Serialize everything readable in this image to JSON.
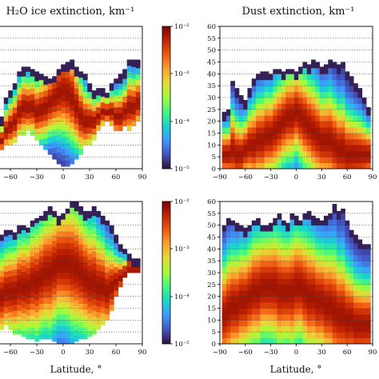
{
  "panels": [
    {
      "id": "ice-top",
      "title": "H₂O ice extinction, km⁻¹",
      "xticks": [
        -60,
        -30,
        0,
        30,
        60,
        90
      ],
      "xtick_labels": [
        "−60",
        "−30",
        "0",
        "30",
        "60",
        "90"
      ],
      "cbar_labels": [
        "10⁻²",
        "10⁻³",
        "10⁻⁴",
        "10⁻⁵"
      ]
    },
    {
      "id": "dust-top",
      "title": "Dust extinction, km⁻¹",
      "xticks": [
        -90,
        -60,
        -30,
        0,
        30,
        60,
        90
      ],
      "xtick_labels": [
        "−90",
        "−60",
        "−30",
        "0",
        "30",
        "60",
        "90"
      ],
      "yticks": [
        0,
        5,
        10,
        15,
        20,
        25,
        30,
        35,
        40,
        45,
        50,
        55,
        60
      ],
      "ytick_labels": [
        "0",
        "5",
        "10",
        "15",
        "20",
        "25",
        "30",
        "35",
        "40",
        "45",
        "50",
        "55",
        "60"
      ]
    },
    {
      "id": "ice-bottom",
      "xticks": [
        -60,
        -30,
        0,
        30,
        60,
        90
      ],
      "xtick_labels": [
        "−60",
        "−30",
        "0",
        "30",
        "60",
        "90"
      ],
      "cbar_labels": [
        "10⁻²",
        "10⁻³",
        "10⁻⁴",
        "10⁻⁵"
      ],
      "xlabel": "Latitude, °"
    },
    {
      "id": "dust-bottom",
      "xticks": [
        -90,
        -60,
        -30,
        0,
        30,
        60,
        90
      ],
      "xtick_labels": [
        "−90",
        "−60",
        "−30",
        "0",
        "30",
        "60",
        "90"
      ],
      "yticks": [
        0,
        5,
        10,
        15,
        20,
        25,
        30,
        35,
        40,
        45,
        50,
        55,
        60
      ],
      "ytick_labels": [
        "0",
        "5",
        "10",
        "15",
        "20",
        "25",
        "30",
        "35",
        "40",
        "45",
        "50",
        "55",
        "60"
      ],
      "xlabel": "Latitude, °"
    }
  ],
  "chart_data": [
    {
      "type": "heatmap",
      "title": "H₂O ice extinction, km⁻¹",
      "xlabel": "",
      "colorscale": "turbo",
      "color_scale_type": "log",
      "color_range": [
        1e-05,
        0.01
      ],
      "no_data_color": "#ffffff",
      "grid": "dotted horizontal",
      "xlim": [
        -90,
        90
      ],
      "ylim": [
        0,
        60
      ],
      "bin_width_deg": 5,
      "columns": [
        {
          "lat": -85,
          "bottom": 4,
          "top": 24,
          "core": 10
        },
        {
          "lat": -80,
          "bottom": 4,
          "top": 26,
          "core": 10
        },
        {
          "lat": -75,
          "bottom": 6,
          "top": 25,
          "core": 12
        },
        {
          "lat": -70,
          "bottom": 8,
          "top": 22,
          "core": 12
        },
        {
          "lat": -65,
          "bottom": 10,
          "top": 30,
          "core": 16
        },
        {
          "lat": -60,
          "bottom": 10,
          "top": 33,
          "core": 18
        },
        {
          "lat": -55,
          "bottom": 11,
          "top": 36,
          "core": 20
        },
        {
          "lat": -50,
          "bottom": 14,
          "top": 41,
          "core": 24
        },
        {
          "lat": -45,
          "bottom": 14,
          "top": 43,
          "core": 26
        },
        {
          "lat": -40,
          "bottom": 16,
          "top": 43,
          "core": 26
        },
        {
          "lat": -35,
          "bottom": 14,
          "top": 42,
          "core": 26
        },
        {
          "lat": -30,
          "bottom": 12,
          "top": 41,
          "core": 24
        },
        {
          "lat": -25,
          "bottom": 10,
          "top": 40,
          "core": 25
        },
        {
          "lat": -20,
          "bottom": 8,
          "top": 39,
          "core": 26
        },
        {
          "lat": -15,
          "bottom": 6,
          "top": 38,
          "core": 28
        },
        {
          "lat": -10,
          "bottom": 4,
          "top": 39,
          "core": 30
        },
        {
          "lat": -5,
          "bottom": 2,
          "top": 42,
          "core": 32
        },
        {
          "lat": 0,
          "bottom": 1,
          "top": 44,
          "core": 33
        },
        {
          "lat": 5,
          "bottom": 1,
          "top": 45,
          "core": 32
        },
        {
          "lat": 10,
          "bottom": 2,
          "top": 46,
          "core": 30
        },
        {
          "lat": 15,
          "bottom": 4,
          "top": 43,
          "core": 26
        },
        {
          "lat": 20,
          "bottom": 6,
          "top": 41,
          "core": 22
        },
        {
          "lat": 25,
          "bottom": 10,
          "top": 40,
          "core": 20
        },
        {
          "lat": 30,
          "bottom": 10,
          "top": 36,
          "core": 20
        },
        {
          "lat": 35,
          "bottom": 12,
          "top": 33,
          "core": 20
        },
        {
          "lat": 40,
          "bottom": 16,
          "top": 34,
          "core": 22
        },
        {
          "lat": 45,
          "bottom": 18,
          "top": 34,
          "core": 24
        },
        {
          "lat": 50,
          "bottom": 20,
          "top": 32,
          "core": 24
        },
        {
          "lat": 55,
          "bottom": 18,
          "top": 36,
          "core": 24
        },
        {
          "lat": 60,
          "bottom": 16,
          "top": 38,
          "core": 22
        },
        {
          "lat": 65,
          "bottom": 16,
          "top": 40,
          "core": 22
        },
        {
          "lat": 70,
          "bottom": 18,
          "top": 42,
          "core": 24
        },
        {
          "lat": 75,
          "bottom": 16,
          "top": 46,
          "core": 26
        },
        {
          "lat": 80,
          "bottom": 18,
          "top": 46,
          "core": 26
        },
        {
          "lat": 85,
          "bottom": 20,
          "top": 46,
          "core": 28
        }
      ]
    },
    {
      "type": "heatmap",
      "title": "Dust extinction, km⁻¹",
      "xlabel": "",
      "colorscale": "turbo",
      "color_scale_type": "log",
      "no_data_color": "#ffffff",
      "grid": "dotted horizontal",
      "xlim": [
        -90,
        90
      ],
      "ylim": [
        0,
        60
      ],
      "bin_width_deg": 5,
      "columns": [
        {
          "lat": -85,
          "bottom": 0,
          "top": 24,
          "core": 6
        },
        {
          "lat": -80,
          "bottom": 0,
          "top": 25,
          "core": 6
        },
        {
          "lat": -75,
          "bottom": 0,
          "top": 37,
          "core": 8
        },
        {
          "lat": -70,
          "bottom": 0,
          "top": 34,
          "core": 6
        },
        {
          "lat": -65,
          "bottom": 0,
          "top": 31,
          "core": 6
        },
        {
          "lat": -60,
          "bottom": 0,
          "top": 29,
          "core": 8
        },
        {
          "lat": -55,
          "bottom": 0,
          "top": 34,
          "core": 10
        },
        {
          "lat": -50,
          "bottom": 0,
          "top": 38,
          "core": 10
        },
        {
          "lat": -45,
          "bottom": 0,
          "top": 40,
          "core": 12
        },
        {
          "lat": -40,
          "bottom": 0,
          "top": 41,
          "core": 12
        },
        {
          "lat": -35,
          "bottom": 0,
          "top": 41,
          "core": 14
        },
        {
          "lat": -30,
          "bottom": 0,
          "top": 40,
          "core": 14
        },
        {
          "lat": -25,
          "bottom": 0,
          "top": 42,
          "core": 16
        },
        {
          "lat": -20,
          "bottom": 0,
          "top": 42,
          "core": 18
        },
        {
          "lat": -15,
          "bottom": 0,
          "top": 41,
          "core": 20
        },
        {
          "lat": -10,
          "bottom": 0,
          "top": 42,
          "core": 22
        },
        {
          "lat": -5,
          "bottom": 0,
          "top": 42,
          "core": 22
        },
        {
          "lat": 0,
          "bottom": 0,
          "top": 41,
          "core": 24
        },
        {
          "lat": 5,
          "bottom": 0,
          "top": 43,
          "core": 22
        },
        {
          "lat": 10,
          "bottom": 0,
          "top": 45,
          "core": 20
        },
        {
          "lat": 15,
          "bottom": 0,
          "top": 44,
          "core": 18
        },
        {
          "lat": 20,
          "bottom": 0,
          "top": 46,
          "core": 16
        },
        {
          "lat": 25,
          "bottom": 0,
          "top": 45,
          "core": 14
        },
        {
          "lat": 30,
          "bottom": 0,
          "top": 43,
          "core": 12
        },
        {
          "lat": 35,
          "bottom": 0,
          "top": 44,
          "core": 12
        },
        {
          "lat": 40,
          "bottom": 0,
          "top": 46,
          "core": 12
        },
        {
          "lat": 45,
          "bottom": 0,
          "top": 45,
          "core": 10
        },
        {
          "lat": 50,
          "bottom": 0,
          "top": 44,
          "core": 8
        },
        {
          "lat": 55,
          "bottom": 0,
          "top": 45,
          "core": 8
        },
        {
          "lat": 60,
          "bottom": 0,
          "top": 41,
          "core": 6
        },
        {
          "lat": 65,
          "bottom": 0,
          "top": 39,
          "core": 6
        },
        {
          "lat": 70,
          "bottom": 0,
          "top": 36,
          "core": 6
        },
        {
          "lat": 75,
          "bottom": 0,
          "top": 34,
          "core": 6
        },
        {
          "lat": 80,
          "bottom": 0,
          "top": 30,
          "core": 6
        },
        {
          "lat": 85,
          "bottom": 0,
          "top": 26,
          "core": 6
        }
      ]
    },
    {
      "type": "heatmap",
      "title": "",
      "xlabel": "Latitude, °",
      "colorscale": "turbo",
      "color_scale_type": "log",
      "color_range": [
        1e-05,
        0.01
      ],
      "no_data_color": "#ffffff",
      "grid": "dotted horizontal",
      "xlim": [
        -90,
        90
      ],
      "ylim": [
        0,
        60
      ],
      "bin_width_deg": 5,
      "columns": [
        {
          "lat": -85,
          "bottom": 16,
          "top": 50,
          "core": 28
        },
        {
          "lat": -80,
          "bottom": 12,
          "top": 48,
          "core": 26
        },
        {
          "lat": -75,
          "bottom": 8,
          "top": 46,
          "core": 22
        },
        {
          "lat": -70,
          "bottom": 6,
          "top": 46,
          "core": 20
        },
        {
          "lat": -65,
          "bottom": 8,
          "top": 48,
          "core": 22
        },
        {
          "lat": -60,
          "bottom": 6,
          "top": 48,
          "core": 22
        },
        {
          "lat": -55,
          "bottom": 4,
          "top": 47,
          "core": 22
        },
        {
          "lat": -50,
          "bottom": 4,
          "top": 50,
          "core": 24
        },
        {
          "lat": -45,
          "bottom": 3,
          "top": 50,
          "core": 24
        },
        {
          "lat": -40,
          "bottom": 2,
          "top": 49,
          "core": 24
        },
        {
          "lat": -35,
          "bottom": 2,
          "top": 52,
          "core": 26
        },
        {
          "lat": -30,
          "bottom": 1,
          "top": 53,
          "core": 26
        },
        {
          "lat": -25,
          "bottom": 2,
          "top": 54,
          "core": 28
        },
        {
          "lat": -20,
          "bottom": 2,
          "top": 56,
          "core": 30
        },
        {
          "lat": -15,
          "bottom": 2,
          "top": 58,
          "core": 30
        },
        {
          "lat": -10,
          "bottom": 1,
          "top": 56,
          "core": 32
        },
        {
          "lat": -5,
          "bottom": 0,
          "top": 54,
          "core": 34
        },
        {
          "lat": 0,
          "bottom": 0,
          "top": 55,
          "core": 34
        },
        {
          "lat": 5,
          "bottom": 0,
          "top": 57,
          "core": 34
        },
        {
          "lat": 10,
          "bottom": 0,
          "top": 60,
          "core": 33
        },
        {
          "lat": 15,
          "bottom": 1,
          "top": 60,
          "core": 32
        },
        {
          "lat": 20,
          "bottom": 2,
          "top": 58,
          "core": 30
        },
        {
          "lat": 25,
          "bottom": 2,
          "top": 56,
          "core": 28
        },
        {
          "lat": 30,
          "bottom": 3,
          "top": 56,
          "core": 26
        },
        {
          "lat": 35,
          "bottom": 4,
          "top": 58,
          "core": 26
        },
        {
          "lat": 40,
          "bottom": 6,
          "top": 56,
          "core": 24
        },
        {
          "lat": 45,
          "bottom": 8,
          "top": 54,
          "core": 24
        },
        {
          "lat": 50,
          "bottom": 10,
          "top": 52,
          "core": 22
        },
        {
          "lat": 55,
          "bottom": 14,
          "top": 50,
          "core": 24
        },
        {
          "lat": 60,
          "bottom": 20,
          "top": 46,
          "core": 26
        },
        {
          "lat": 65,
          "bottom": 24,
          "top": 42,
          "core": 28
        },
        {
          "lat": 70,
          "bottom": 28,
          "top": 40,
          "core": 30
        },
        {
          "lat": 75,
          "bottom": 30,
          "top": 38,
          "core": 32
        },
        {
          "lat": 80,
          "bottom": 30,
          "top": 36,
          "core": 32
        },
        {
          "lat": 85,
          "bottom": 30,
          "top": 36,
          "core": 32
        }
      ]
    },
    {
      "type": "heatmap",
      "title": "",
      "xlabel": "Latitude, °",
      "colorscale": "turbo",
      "color_scale_type": "log",
      "no_data_color": "#ffffff",
      "grid": "dotted horizontal",
      "xlim": [
        -90,
        90
      ],
      "ylim": [
        0,
        60
      ],
      "bin_width_deg": 5,
      "columns": [
        {
          "lat": -85,
          "bottom": 0,
          "top": 50,
          "core": 12
        },
        {
          "lat": -80,
          "bottom": 0,
          "top": 53,
          "core": 14
        },
        {
          "lat": -75,
          "bottom": 0,
          "top": 52,
          "core": 16
        },
        {
          "lat": -70,
          "bottom": 0,
          "top": 51,
          "core": 16
        },
        {
          "lat": -65,
          "bottom": 0,
          "top": 50,
          "core": 18
        },
        {
          "lat": -60,
          "bottom": 0,
          "top": 49,
          "core": 18
        },
        {
          "lat": -55,
          "bottom": 0,
          "top": 50,
          "core": 20
        },
        {
          "lat": -50,
          "bottom": 0,
          "top": 52,
          "core": 22
        },
        {
          "lat": -45,
          "bottom": 0,
          "top": 53,
          "core": 22
        },
        {
          "lat": -40,
          "bottom": 0,
          "top": 50,
          "core": 24
        },
        {
          "lat": -35,
          "bottom": 0,
          "top": 50,
          "core": 24
        },
        {
          "lat": -30,
          "bottom": 0,
          "top": 51,
          "core": 24
        },
        {
          "lat": -25,
          "bottom": 0,
          "top": 53,
          "core": 24
        },
        {
          "lat": -20,
          "bottom": 0,
          "top": 55,
          "core": 22
        },
        {
          "lat": -15,
          "bottom": 0,
          "top": 52,
          "core": 22
        },
        {
          "lat": -10,
          "bottom": 0,
          "top": 51,
          "core": 22
        },
        {
          "lat": -5,
          "bottom": 0,
          "top": 55,
          "core": 22
        },
        {
          "lat": 0,
          "bottom": 0,
          "top": 54,
          "core": 24
        },
        {
          "lat": 5,
          "bottom": 0,
          "top": 52,
          "core": 24
        },
        {
          "lat": 10,
          "bottom": 0,
          "top": 55,
          "core": 22
        },
        {
          "lat": 15,
          "bottom": 0,
          "top": 56,
          "core": 20
        },
        {
          "lat": 20,
          "bottom": 0,
          "top": 54,
          "core": 20
        },
        {
          "lat": 25,
          "bottom": 0,
          "top": 53,
          "core": 18
        },
        {
          "lat": 30,
          "bottom": 0,
          "top": 52,
          "core": 18
        },
        {
          "lat": 35,
          "bottom": 0,
          "top": 54,
          "core": 16
        },
        {
          "lat": 40,
          "bottom": 0,
          "top": 55,
          "core": 16
        },
        {
          "lat": 45,
          "bottom": 0,
          "top": 59,
          "core": 14
        },
        {
          "lat": 50,
          "bottom": 0,
          "top": 56,
          "core": 12
        },
        {
          "lat": 55,
          "bottom": 0,
          "top": 57,
          "core": 12
        },
        {
          "lat": 60,
          "bottom": 0,
          "top": 52,
          "core": 10
        },
        {
          "lat": 65,
          "bottom": 0,
          "top": 48,
          "core": 10
        },
        {
          "lat": 70,
          "bottom": 0,
          "top": 46,
          "core": 8
        },
        {
          "lat": 75,
          "bottom": 0,
          "top": 44,
          "core": 8
        },
        {
          "lat": 80,
          "bottom": 0,
          "top": 42,
          "core": 8
        },
        {
          "lat": 85,
          "bottom": 0,
          "top": 42,
          "core": 8
        }
      ]
    }
  ]
}
